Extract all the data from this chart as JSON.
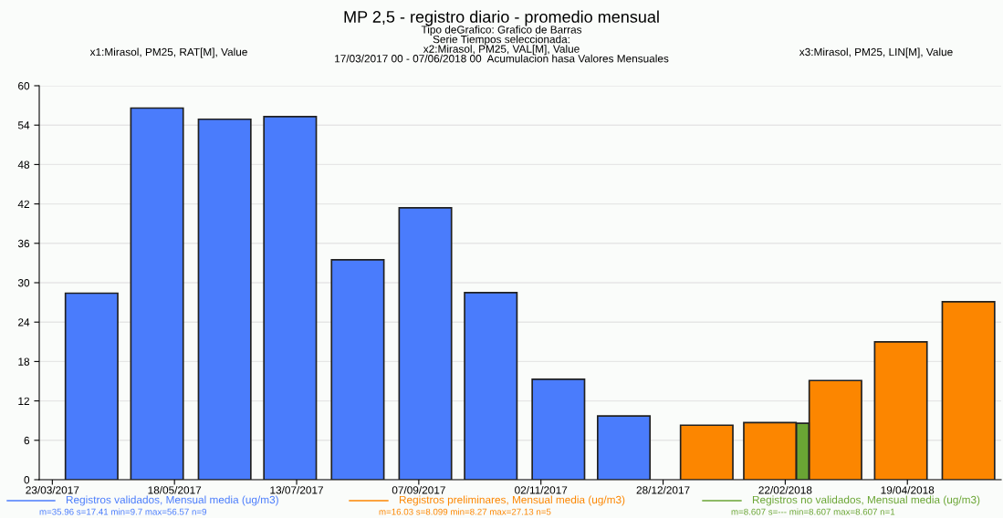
{
  "chart_data": {
    "type": "bar",
    "title": "MP 2,5 - registro diario - promedio mensual",
    "subtitle": "Tipo deGrafico: Grafico de Barras\nSerie Tiempos seleccionada:\nx2:Mirasol, PM25, VAL[M], Value\n17/03/2017 00 - 07/06/2018 00  Acumulacion hasa Valores Mensuales",
    "series": [
      {
        "name": "Registros validados, Mensual media (ug/m3)",
        "color": "#4a7cfc",
        "x": [
          "2017-04-10",
          "2017-05-10",
          "2017-06-10",
          "2017-07-10",
          "2017-08-10",
          "2017-09-10",
          "2017-10-10",
          "2017-11-10",
          "2017-12-10"
        ],
        "values": [
          28.4,
          56.6,
          54.9,
          55.3,
          33.5,
          41.4,
          28.5,
          15.3,
          9.7
        ]
      },
      {
        "name": "Registros preliminares, Mensual media (ug/m3)",
        "color": "#fc8600",
        "x": [
          "2018-01-17",
          "2018-02-15",
          "2018-03-17",
          "2018-04-16",
          "2018-05-17"
        ],
        "values": [
          8.3,
          8.7,
          15.1,
          21.0,
          27.1
        ]
      },
      {
        "name": "Registros no validados, Mensual media (ug/m3)",
        "color": "#6aa534",
        "x": [
          "2018-03-02"
        ],
        "values": [
          8.6
        ]
      }
    ],
    "xlim": [
      "2017-03-17",
      "2018-06-01"
    ],
    "xticks": [
      {
        "value": "2017-03-23",
        "label": "23/03/2017"
      },
      {
        "value": "2017-05-18",
        "label": "18/05/2017"
      },
      {
        "value": "2017-07-13",
        "label": "13/07/2017"
      },
      {
        "value": "2017-09-07",
        "label": "07/09/2017"
      },
      {
        "value": "2017-11-02",
        "label": "02/11/2017"
      },
      {
        "value": "2017-12-28",
        "label": "28/12/2017"
      },
      {
        "value": "2018-02-22",
        "label": "22/02/2018"
      },
      {
        "value": "2018-04-19",
        "label": "19/04/2018"
      }
    ],
    "ylim": [
      0,
      60
    ],
    "yticks": [
      0,
      6,
      12,
      18,
      24,
      30,
      36,
      42,
      48,
      54,
      60
    ],
    "grid": "y",
    "legend": "bottom",
    "annotations": [
      "x1:Mirasol, PM25, RAT[M], Value",
      "x3:Mirasol, PM25, LIN[M], Value",
      "m=35.96 s=17.41 min=9.7 max=56.57 n=9",
      "m=16.03 s=8.099 min=8.27 max=27.13 n=5",
      "m=8.607 s=--- min=8.607 max=8.607 n=1"
    ]
  }
}
